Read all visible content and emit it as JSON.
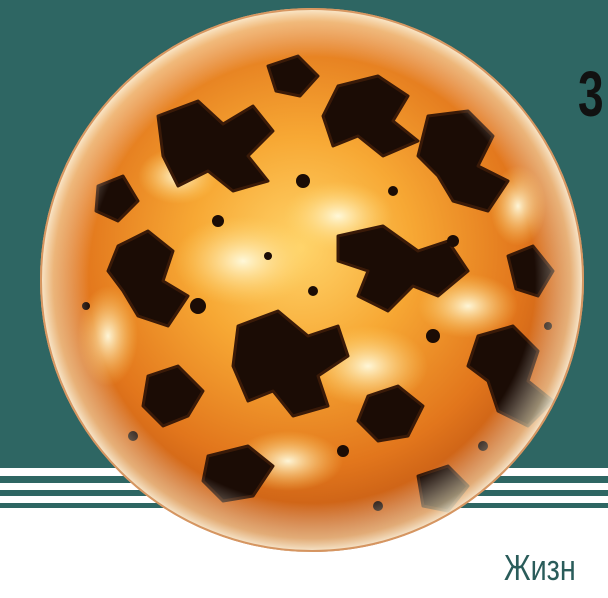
{
  "page": {
    "page_number": "3",
    "caption": "Жизн"
  },
  "image": {
    "subject_icon": "planet-globe",
    "colors": {
      "teal": "#2e6663",
      "planet_bright": "#fff6c8",
      "planet_orange": "#f08a1c",
      "planet_dark": "#1a0c04"
    }
  }
}
